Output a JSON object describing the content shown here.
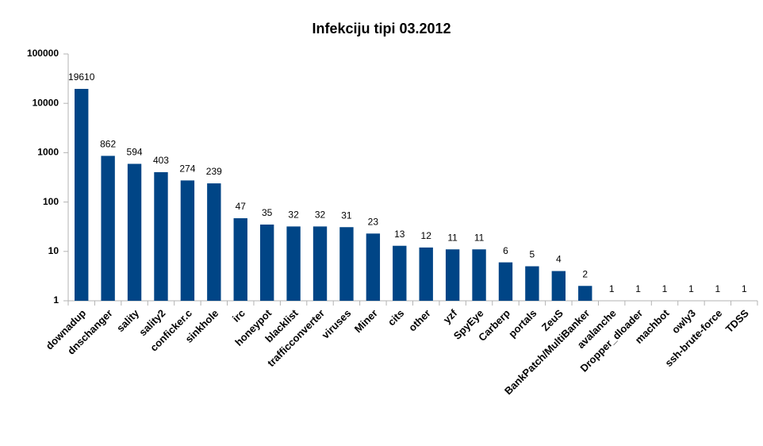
{
  "chart_data": {
    "type": "bar",
    "title": "Infekciju tipi 03.2012",
    "categories": [
      "downadup",
      "dnschanger",
      "sality",
      "sality2",
      "conficker.c",
      "sinkhole",
      "irc",
      "honeypot",
      "blacklist",
      "trafficconverter",
      "viruses",
      "Miner",
      "cits",
      "other",
      "yzf",
      "SpyEye",
      "Carberp",
      "portals",
      "ZeuS",
      "BankPatch/MultiBanker",
      "avalanche",
      "Dropper_dloader",
      "machbot",
      "owly3",
      "ssh-brute-force",
      "TDSS"
    ],
    "values": [
      19610,
      862,
      594,
      403,
      274,
      239,
      47,
      35,
      32,
      32,
      31,
      23,
      13,
      12,
      11,
      11,
      6,
      5,
      4,
      2,
      1,
      1,
      1,
      1,
      1,
      1
    ],
    "color": "#004586",
    "ylim": [
      1,
      100000
    ],
    "yticks": [
      1,
      10,
      100,
      1000,
      10000,
      100000
    ],
    "log_scale": true,
    "grid": false
  }
}
